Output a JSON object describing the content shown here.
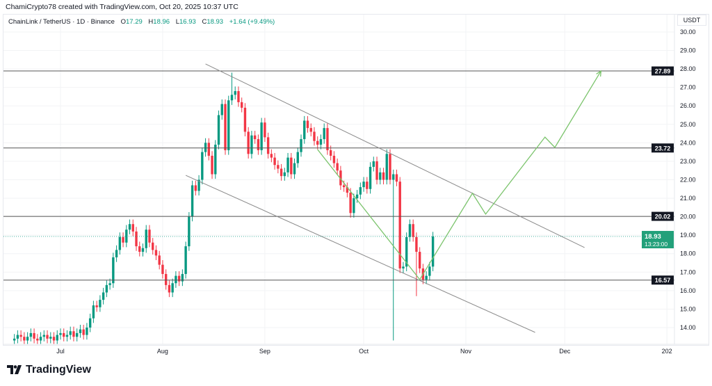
{
  "credit": "ChamiCrypto78 created with TradingView.com, Oct 20, 2025 10:37 UTC",
  "legend": {
    "symbol": "ChainLink / TetherUS · 1D · Binance",
    "o_label": "O",
    "o": "17.29",
    "h_label": "H",
    "h": "18.96",
    "l_label": "L",
    "l": "16.93",
    "c_label": "C",
    "c": "18.93",
    "change": "+1.64 (+9.49%)"
  },
  "footer": {
    "brand": "TradingView"
  },
  "colors": {
    "up": "#089981",
    "down": "#f23645",
    "level": "#555555",
    "channel": "#8a8a8a",
    "projection": "#7cc46d",
    "price_label": "#22a07a"
  },
  "chart_data": {
    "type": "candlestick",
    "currency": "USDT",
    "ylim": [
      13.0,
      30.5
    ],
    "y_ticks": [
      "30.00",
      "29.00",
      "28.00",
      "27.00",
      "26.00",
      "25.00",
      "24.00",
      "23.00",
      "22.00",
      "21.00",
      "20.00",
      "19.00",
      "18.00",
      "17.00",
      "16.00",
      "15.00",
      "14.00"
    ],
    "x_ticks": [
      {
        "label": "Jul",
        "date": "2025-07-01"
      },
      {
        "label": "Aug",
        "date": "2025-08-01"
      },
      {
        "label": "Sep",
        "date": "2025-09-01"
      },
      {
        "label": "Oct",
        "date": "2025-10-01"
      },
      {
        "label": "Nov",
        "date": "2025-11-01"
      },
      {
        "label": "Dec",
        "date": "2025-12-01"
      },
      {
        "label": "202",
        "date": "2026-01-01"
      }
    ],
    "first_date": "2025-06-17",
    "last_date": "2025-10-20",
    "closes": [
      13.4,
      13.6,
      13.5,
      13.3,
      13.5,
      13.7,
      13.4,
      13.3,
      13.5,
      13.6,
      13.4,
      13.5,
      13.3,
      13.6,
      13.7,
      13.5,
      13.6,
      13.8,
      13.5,
      13.7,
      13.9,
      13.6,
      14.0,
      14.5,
      15.2,
      15.1,
      15.5,
      15.9,
      16.3,
      16.4,
      17.8,
      18.2,
      18.9,
      18.6,
      19.3,
      19.6,
      19.2,
      18.4,
      18.1,
      18.3,
      19.3,
      18.6,
      18.2,
      17.9,
      17.4,
      16.9,
      16.3,
      15.9,
      16.4,
      16.8,
      16.5,
      16.9,
      18.4,
      20.0,
      21.7,
      21.4,
      22.0,
      23.5,
      24.0,
      23.3,
      22.3,
      23.9,
      25.5,
      26.1,
      23.6,
      26.3,
      26.6,
      26.8,
      26.2,
      25.9,
      24.6,
      23.4,
      24.4,
      24.2,
      23.6,
      25.1,
      24.3,
      23.4,
      23.2,
      22.8,
      22.6,
      22.2,
      22.4,
      23.2,
      22.3,
      22.9,
      23.5,
      24.2,
      25.2,
      24.8,
      24.6,
      24.1,
      23.9,
      24.2,
      24.8,
      23.6,
      23.3,
      22.9,
      22.5,
      21.7,
      21.6,
      21.3,
      20.2,
      21.0,
      21.2,
      21.6,
      21.9,
      21.5,
      22.7,
      23.0,
      22.0,
      22.4,
      22.0,
      23.4,
      22.0,
      22.3,
      21.9,
      17.2,
      17.3,
      18.9,
      19.6,
      18.9,
      18.1,
      17.2,
      16.6,
      16.8,
      17.3,
      18.93
    ],
    "notable_extremes": [
      {
        "date": "2025-08-22",
        "high": 27.8
      },
      {
        "date": "2025-10-10",
        "low": 13.3
      },
      {
        "date": "2025-10-17",
        "low": 15.7
      }
    ],
    "horizontal_levels": [
      {
        "price": 27.89,
        "label": "27.89"
      },
      {
        "price": 23.72,
        "label": "23.72"
      },
      {
        "price": 20.02,
        "label": "20.02"
      },
      {
        "price": 16.57,
        "label": "16.57"
      }
    ],
    "channel_lines": [
      {
        "from": {
          "date": "2025-08-14",
          "price": 28.27
        },
        "to": {
          "date": "2025-12-07",
          "price": 18.33
        }
      },
      {
        "from": {
          "date": "2025-08-08",
          "price": 22.24
        },
        "to": {
          "date": "2025-11-22",
          "price": 13.74
        }
      }
    ],
    "projection_path": [
      {
        "date": "2025-09-17",
        "price": 23.64
      },
      {
        "date": "2025-10-18",
        "price": 16.6
      },
      {
        "date": "2025-11-03",
        "price": 21.27
      },
      {
        "date": "2025-11-07",
        "price": 20.14
      },
      {
        "date": "2025-11-25",
        "price": 24.31
      },
      {
        "date": "2025-11-28",
        "price": 23.75
      },
      {
        "date": "2025-12-12",
        "price": 27.89
      }
    ],
    "last_price": {
      "price": 18.93,
      "label": "18.93",
      "countdown": "13:23:00"
    }
  }
}
